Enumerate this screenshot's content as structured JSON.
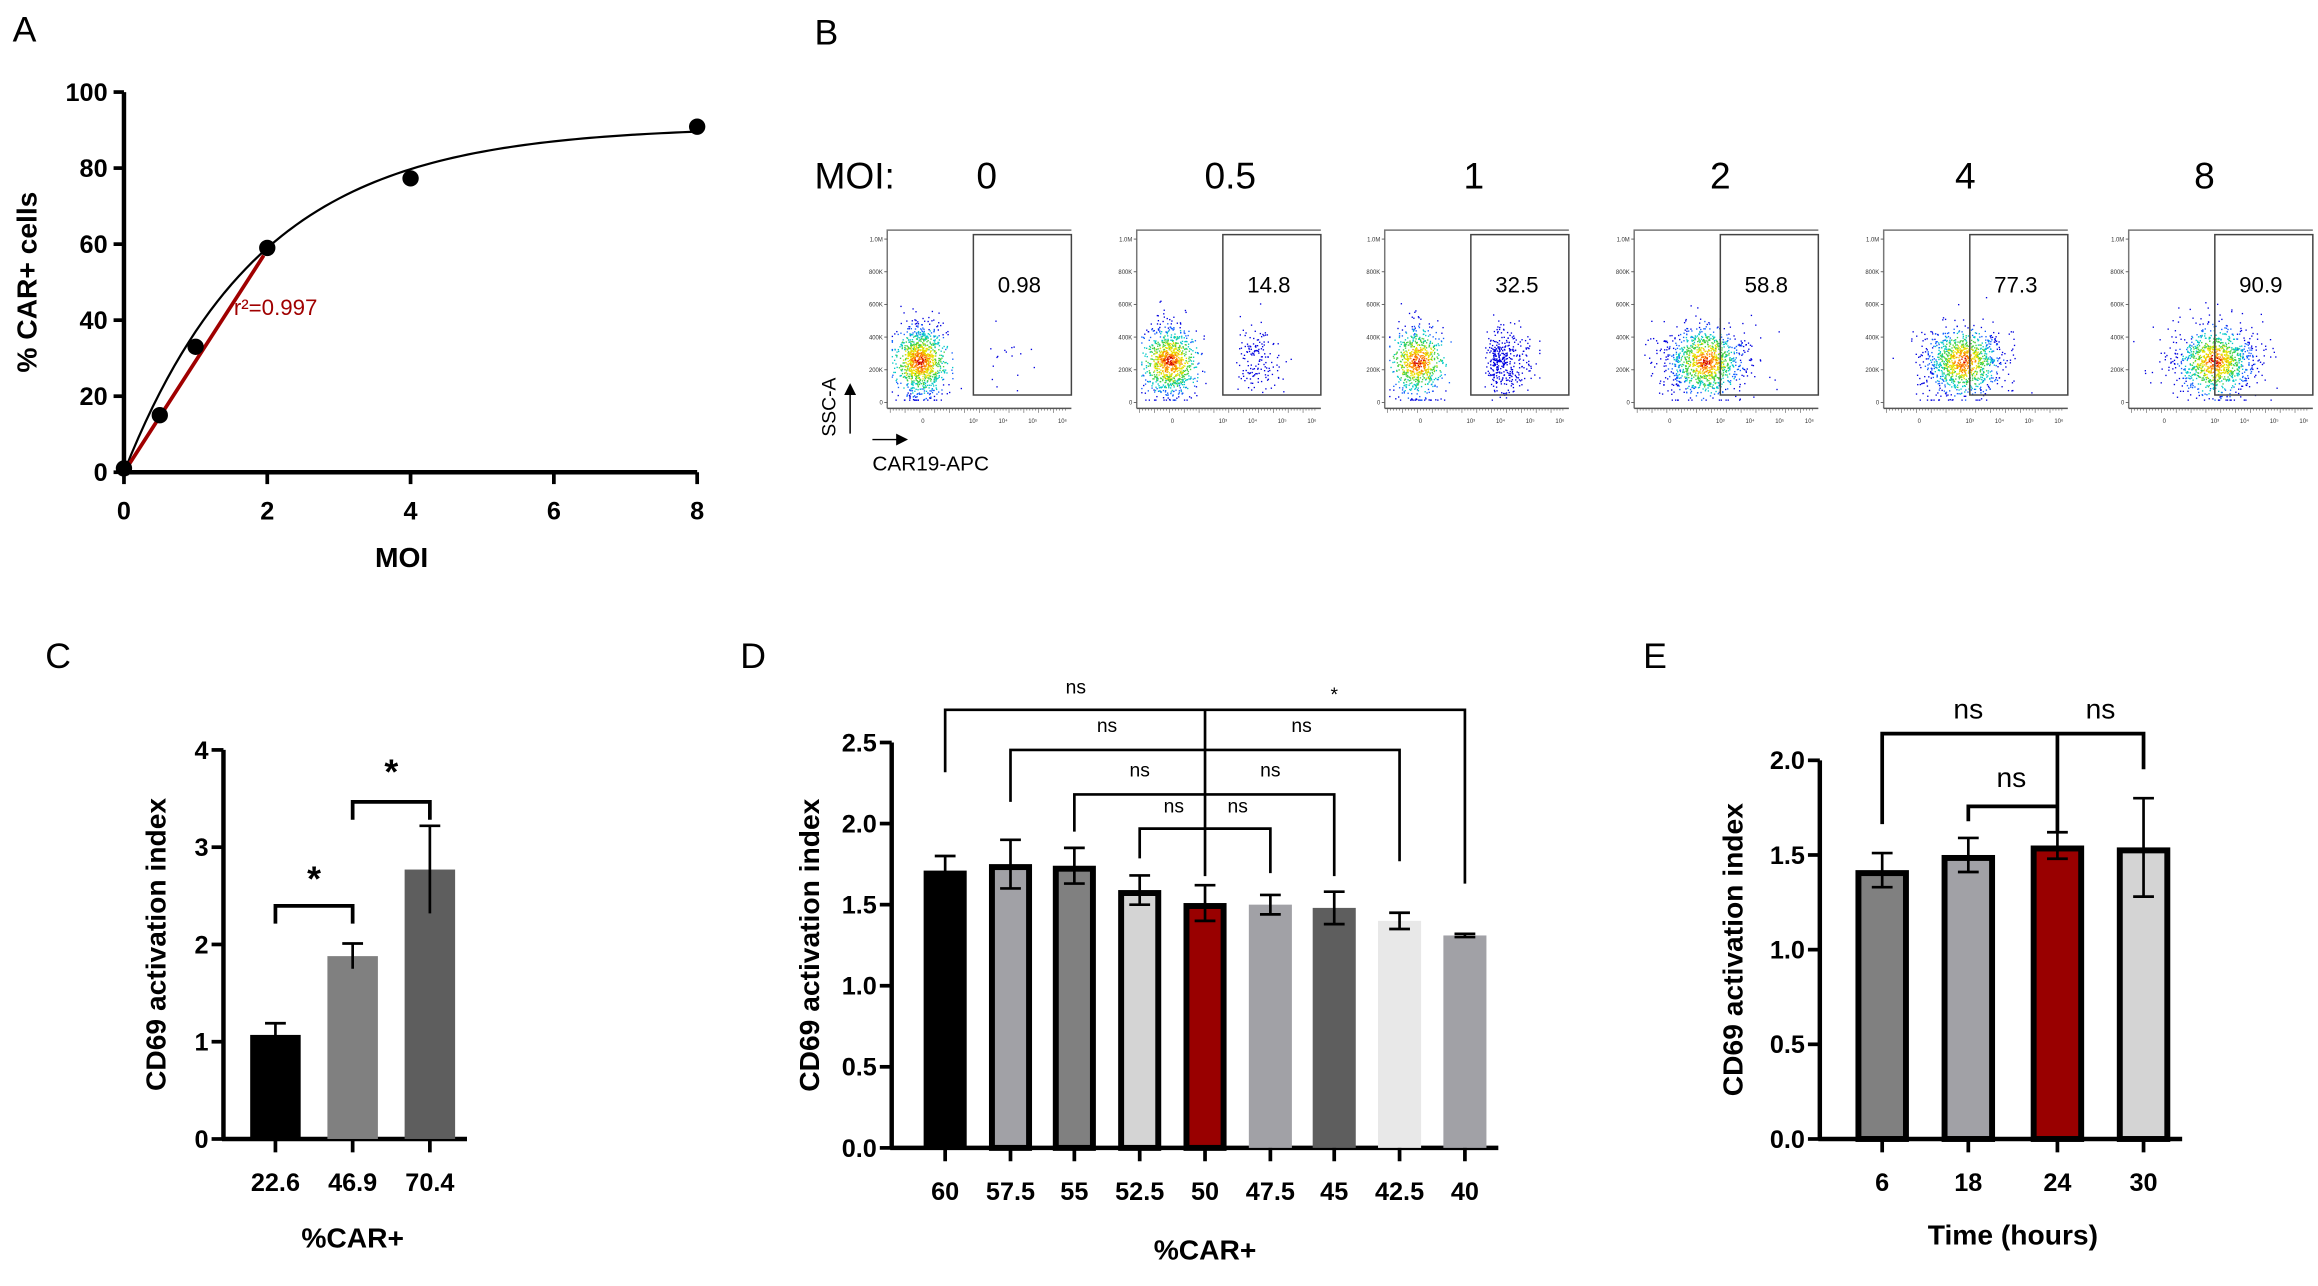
{
  "panel_labels": [
    "A",
    "B",
    "C",
    "D",
    "E"
  ],
  "chart_data": [
    {
      "panel": "A",
      "type": "scatter",
      "xlabel": "MOI",
      "ylabel": "% CAR+ cells",
      "xlim": [
        0,
        8
      ],
      "ylim": [
        0,
        100
      ],
      "xticks": [
        "0",
        "2",
        "4",
        "6",
        "8"
      ],
      "yticks": [
        "0",
        "20",
        "40",
        "60",
        "80",
        "100"
      ],
      "x": [
        0,
        0.5,
        1,
        2,
        4,
        8
      ],
      "y": [
        1,
        15,
        33,
        59,
        77.3,
        90.9
      ],
      "fit_annotation": "r²=0.997",
      "fit_color": "#a00000",
      "linear_fit_range": [
        0,
        2
      ]
    },
    {
      "panel": "C",
      "type": "bar",
      "xlabel": "%CAR+",
      "ylabel": "CD69 activation index",
      "ylim": [
        0,
        4
      ],
      "yticks": [
        "0",
        "1",
        "2",
        "3",
        "4"
      ],
      "categories": [
        "22.6",
        "46.9",
        "70.4"
      ],
      "values": [
        1.07,
        1.88,
        2.77
      ],
      "errors": [
        0.12,
        0.13,
        0.45
      ],
      "colors": [
        "#000000",
        "#808080",
        "#5e5e5e"
      ],
      "outlined": [
        false,
        false,
        false
      ],
      "significance": [
        {
          "from": 0,
          "to": 1,
          "label": "*"
        },
        {
          "from": 1,
          "to": 2,
          "label": "*"
        }
      ]
    },
    {
      "panel": "D",
      "type": "bar",
      "xlabel": "%CAR+",
      "ylabel": "CD69 activation index",
      "ylim": [
        0,
        2.5
      ],
      "yticks": [
        "0.0",
        "0.5",
        "1.0",
        "1.5",
        "2.0",
        "2.5"
      ],
      "categories": [
        "60",
        "57.5",
        "55",
        "52.5",
        "50",
        "47.5",
        "45",
        "42.5",
        "40"
      ],
      "values": [
        1.71,
        1.75,
        1.74,
        1.59,
        1.51,
        1.5,
        1.48,
        1.4,
        1.31
      ],
      "errors": [
        0.09,
        0.15,
        0.11,
        0.09,
        0.11,
        0.06,
        0.1,
        0.05,
        0.01
      ],
      "colors": [
        "#000000",
        "#a1a1a6",
        "#808080",
        "#d4d4d4",
        "#990000",
        "#a1a1a6",
        "#5e5e5e",
        "#e8e8e8",
        "#a1a1a6"
      ],
      "outlined": [
        false,
        true,
        true,
        true,
        true,
        false,
        false,
        false,
        false
      ],
      "significance": [
        {
          "ref": 4,
          "pair": [
            0,
            8
          ],
          "labels": [
            "ns",
            "*"
          ]
        },
        {
          "ref": 4,
          "pair": [
            1,
            7
          ],
          "labels": [
            "ns",
            "ns"
          ]
        },
        {
          "ref": 4,
          "pair": [
            2,
            6
          ],
          "labels": [
            "ns",
            "ns"
          ]
        },
        {
          "ref": 4,
          "pair": [
            3,
            5
          ],
          "labels": [
            "ns",
            "ns"
          ]
        }
      ]
    },
    {
      "panel": "E",
      "type": "bar",
      "xlabel": "Time (hours)",
      "ylabel": "CD69 activation index",
      "ylim": [
        0,
        2.0
      ],
      "yticks": [
        "0.0",
        "0.5",
        "1.0",
        "1.5",
        "2.0"
      ],
      "categories": [
        "6",
        "18",
        "24",
        "30"
      ],
      "values": [
        1.42,
        1.5,
        1.55,
        1.54
      ],
      "errors": [
        0.09,
        0.09,
        0.07,
        0.26
      ],
      "colors": [
        "#808080",
        "#a1a1a6",
        "#990000",
        "#d4d4d4"
      ],
      "outlined": [
        true,
        true,
        true,
        true
      ],
      "significance": [
        {
          "ref": 2,
          "pair": [
            0,
            3
          ],
          "labels": [
            "ns",
            "ns"
          ]
        },
        {
          "ref": 2,
          "pair": [
            1,
            1
          ],
          "labels": [
            "ns"
          ]
        }
      ]
    }
  ],
  "flow": {
    "moi_label": "MOI:",
    "moi": [
      "0",
      "0.5",
      "1",
      "2",
      "4",
      "8"
    ],
    "gate_values": [
      "0.98",
      "14.8",
      "32.5",
      "58.8",
      "77.3",
      "90.9"
    ],
    "gate_percent": [
      0.98,
      14.8,
      32.5,
      58.8,
      77.3,
      90.9
    ],
    "y_axis": "SSC-A",
    "x_axis": "CAR19-APC",
    "yticks": [
      "1.0M",
      "800K",
      "600K",
      "400K",
      "200K",
      "0"
    ],
    "xticks": [
      "0",
      "10³",
      "10⁴",
      "10⁵",
      "10⁶"
    ]
  }
}
